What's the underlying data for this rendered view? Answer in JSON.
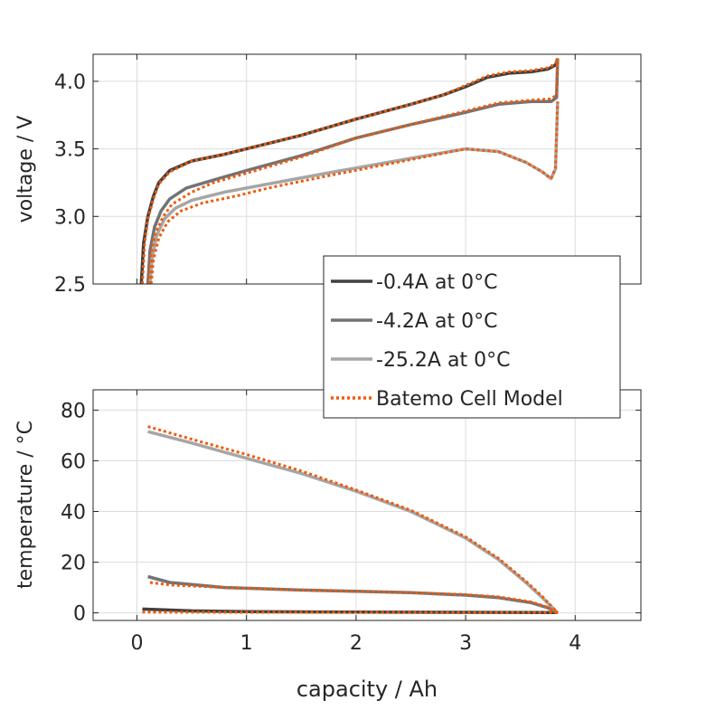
{
  "chart_data": [
    {
      "type": "line",
      "title": "",
      "xlabel": "",
      "ylabel": "voltage / V",
      "xlim": [
        -0.4,
        4.6
      ],
      "ylim": [
        2.5,
        4.2
      ],
      "xticks": [
        0,
        1,
        2,
        3,
        4
      ],
      "yticks": [
        2.5,
        3.0,
        3.5,
        4.0
      ],
      "ytick_labels": [
        "2.5",
        "3.0",
        "3.5",
        "4.0"
      ],
      "grid": true,
      "series": [
        {
          "name": "-0.4A at 0°C",
          "color": "#404040",
          "style": "solid",
          "x": [
            0.04,
            0.06,
            0.1,
            0.15,
            0.2,
            0.3,
            0.5,
            0.8,
            1.0,
            1.5,
            2.0,
            2.5,
            2.8,
            3.0,
            3.2,
            3.4,
            3.6,
            3.75,
            3.82,
            3.84
          ],
          "y": [
            2.5,
            2.8,
            3.0,
            3.15,
            3.25,
            3.34,
            3.41,
            3.46,
            3.5,
            3.6,
            3.72,
            3.83,
            3.9,
            3.96,
            4.03,
            4.06,
            4.07,
            4.09,
            4.12,
            4.17
          ]
        },
        {
          "name": "-4.2A at 0°C",
          "color": "#737373",
          "style": "solid",
          "x": [
            0.1,
            0.12,
            0.16,
            0.22,
            0.3,
            0.45,
            0.7,
            1.0,
            1.5,
            2.0,
            2.5,
            3.0,
            3.3,
            3.6,
            3.78,
            3.83,
            3.84
          ],
          "y": [
            2.5,
            2.75,
            2.92,
            3.04,
            3.13,
            3.21,
            3.27,
            3.34,
            3.45,
            3.58,
            3.68,
            3.77,
            3.83,
            3.85,
            3.85,
            3.88,
            4.17
          ]
        },
        {
          "name": "-25.2A at 0°C",
          "color": "#a6a6a6",
          "style": "solid",
          "x": [
            0.12,
            0.14,
            0.18,
            0.25,
            0.35,
            0.5,
            0.8,
            1.2,
            1.8,
            2.5,
            3.0,
            3.3,
            3.55,
            3.7,
            3.78,
            3.82,
            3.84
          ],
          "y": [
            2.5,
            2.7,
            2.86,
            2.98,
            3.06,
            3.12,
            3.18,
            3.24,
            3.33,
            3.43,
            3.5,
            3.48,
            3.4,
            3.33,
            3.28,
            3.35,
            3.85
          ]
        },
        {
          "name": "Batemo Cell Model",
          "color": "#f05a0a",
          "style": "dotted",
          "x": [
            0.05,
            0.07,
            0.1,
            0.15,
            0.2,
            0.3,
            0.5,
            0.8,
            1.0,
            1.5,
            2.0,
            2.5,
            2.8,
            3.0,
            3.2,
            3.4,
            3.6,
            3.75,
            3.82,
            3.84
          ],
          "y": [
            2.5,
            2.8,
            2.98,
            3.13,
            3.24,
            3.33,
            3.41,
            3.46,
            3.5,
            3.6,
            3.72,
            3.83,
            3.9,
            3.97,
            4.04,
            4.07,
            4.08,
            4.1,
            4.13,
            4.17
          ]
        },
        {
          "name": "Batemo Cell Model",
          "color": "#f05a0a",
          "style": "dotted",
          "legend": false,
          "x": [
            0.11,
            0.13,
            0.17,
            0.24,
            0.32,
            0.5,
            0.7,
            1.0,
            1.5,
            2.0,
            2.5,
            3.0,
            3.3,
            3.6,
            3.78,
            3.83,
            3.84
          ],
          "y": [
            2.5,
            2.72,
            2.88,
            3.0,
            3.09,
            3.18,
            3.25,
            3.32,
            3.44,
            3.58,
            3.68,
            3.78,
            3.84,
            3.86,
            3.87,
            3.9,
            4.17
          ]
        },
        {
          "name": "Batemo Cell Model",
          "color": "#f05a0a",
          "style": "dotted",
          "legend": false,
          "x": [
            0.13,
            0.15,
            0.2,
            0.28,
            0.4,
            0.6,
            0.9,
            1.2,
            1.8,
            2.5,
            3.0,
            3.3,
            3.55,
            3.7,
            3.78,
            3.82,
            3.84
          ],
          "y": [
            2.5,
            2.68,
            2.84,
            2.96,
            3.04,
            3.1,
            3.15,
            3.21,
            3.31,
            3.42,
            3.5,
            3.48,
            3.4,
            3.33,
            3.28,
            3.36,
            3.85
          ]
        }
      ]
    },
    {
      "type": "line",
      "title": "",
      "xlabel": "capacity / Ah",
      "ylabel": "temperature / °C",
      "xlim": [
        -0.4,
        4.6
      ],
      "ylim": [
        -3,
        88
      ],
      "xticks": [
        0,
        1,
        2,
        3,
        4
      ],
      "xtick_labels": [
        "0",
        "1",
        "2",
        "3",
        "4"
      ],
      "yticks": [
        0,
        20,
        40,
        60,
        80
      ],
      "ytick_labels": [
        "0",
        "20",
        "40",
        "60",
        "80"
      ],
      "grid": true,
      "series": [
        {
          "name": "-0.4A at 0°C",
          "color": "#404040",
          "style": "solid",
          "x": [
            0.05,
            0.5,
            1.0,
            2.0,
            3.0,
            3.84
          ],
          "y": [
            1.5,
            0.8,
            0.5,
            0.3,
            0.2,
            0.1
          ]
        },
        {
          "name": "-4.2A at 0°C",
          "color": "#737373",
          "style": "solid",
          "x": [
            0.1,
            0.3,
            0.8,
            1.5,
            2.0,
            2.5,
            3.0,
            3.3,
            3.6,
            3.75,
            3.84
          ],
          "y": [
            14.3,
            12,
            10,
            9,
            8.5,
            8,
            7,
            6,
            4,
            2,
            0
          ]
        },
        {
          "name": "-25.2A at 0°C",
          "color": "#a6a6a6",
          "style": "solid",
          "x": [
            0.1,
            0.5,
            1.0,
            1.5,
            2.0,
            2.5,
            3.0,
            3.3,
            3.55,
            3.7,
            3.84
          ],
          "y": [
            71.5,
            67,
            61,
            55,
            48,
            40,
            29.5,
            21,
            12,
            6,
            0
          ]
        },
        {
          "name": "Batemo Cell Model",
          "color": "#f05a0a",
          "style": "dotted",
          "legend": false,
          "x": [
            0.05,
            1.0,
            2.0,
            3.0,
            3.84
          ],
          "y": [
            0.3,
            0.2,
            0.2,
            0.1,
            0.1
          ]
        },
        {
          "name": "Batemo Cell Model",
          "color": "#f05a0a",
          "style": "dotted",
          "legend": false,
          "x": [
            0.12,
            0.3,
            0.8,
            1.5,
            2.0,
            2.5,
            3.0,
            3.3,
            3.6,
            3.75,
            3.84
          ],
          "y": [
            12,
            11,
            10,
            9,
            8.5,
            8,
            7.2,
            6.3,
            4.3,
            2.2,
            0
          ]
        },
        {
          "name": "Batemo Cell Model",
          "color": "#f05a0a",
          "style": "dotted",
          "legend": false,
          "x": [
            0.1,
            0.5,
            1.0,
            1.5,
            2.0,
            2.5,
            3.0,
            3.3,
            3.55,
            3.7,
            3.84
          ],
          "y": [
            73.5,
            68.5,
            62.5,
            56,
            48.5,
            40.5,
            30,
            21.5,
            12.5,
            6.5,
            0
          ]
        }
      ]
    }
  ],
  "legend": {
    "placement": "between-subplots-right",
    "entries": [
      {
        "label": "-0.4A at 0°C",
        "color": "#404040",
        "style": "solid"
      },
      {
        "label": "-4.2A at 0°C",
        "color": "#737373",
        "style": "solid"
      },
      {
        "label": "-25.2A at 0°C",
        "color": "#a6a6a6",
        "style": "solid"
      },
      {
        "label": "Batemo Cell Model",
        "color": "#f05a0a",
        "style": "dotted"
      }
    ]
  }
}
